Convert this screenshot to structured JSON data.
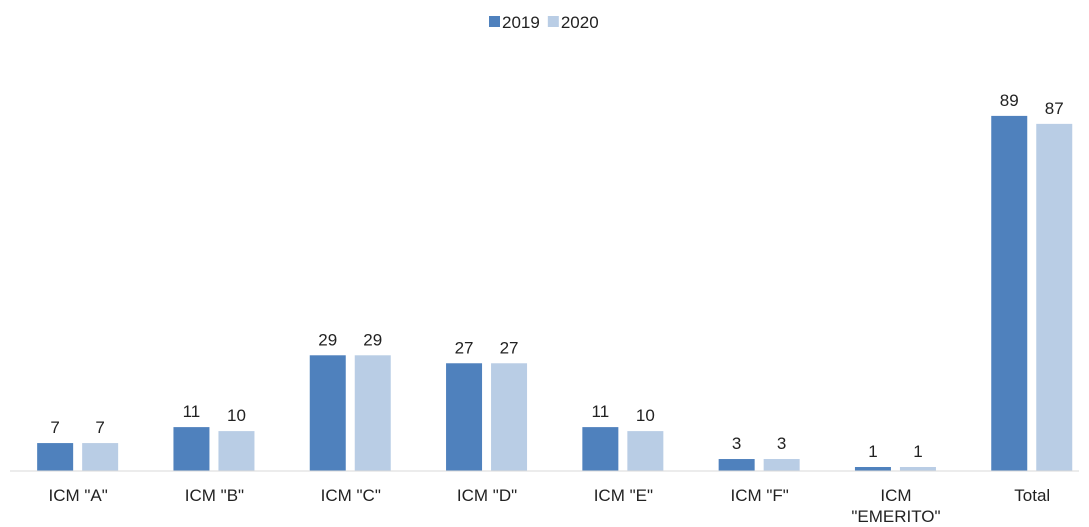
{
  "chart_data": {
    "type": "bar",
    "categories": [
      "ICM \"A\"",
      "ICM \"B\"",
      "ICM \"C\"",
      "ICM \"D\"",
      "ICM \"E\"",
      "ICM \"F\"",
      "ICM \"EMERITO\"",
      "Total"
    ],
    "series": [
      {
        "name": "2019",
        "color": "#4f81bd",
        "values": [
          7,
          11,
          29,
          27,
          11,
          3,
          1,
          89
        ]
      },
      {
        "name": "2020",
        "color": "#b9cde5",
        "values": [
          7,
          10,
          29,
          27,
          10,
          3,
          1,
          87
        ]
      }
    ],
    "ylim": [
      0,
      100
    ],
    "legend": "top"
  }
}
